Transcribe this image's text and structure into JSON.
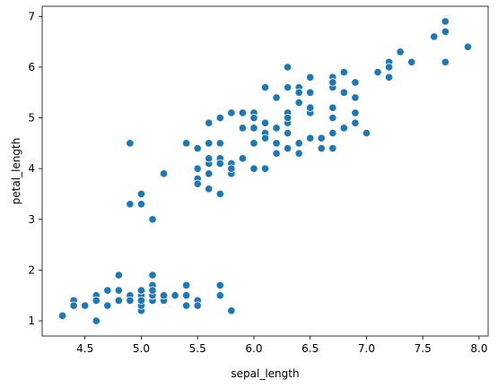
{
  "chart_data": {
    "type": "scatter",
    "xlabel": "sepal_length",
    "ylabel": "petal_length",
    "xlim": [
      4.12,
      8.08
    ],
    "ylim": [
      0.7,
      7.2
    ],
    "xticks": [
      4.5,
      5.0,
      5.5,
      6.0,
      6.5,
      7.0,
      7.5,
      8.0
    ],
    "xtick_labels": [
      "4.5",
      "5.0",
      "5.5",
      "6.0",
      "6.5",
      "7.0",
      "7.5",
      "8.0"
    ],
    "yticks": [
      1,
      2,
      3,
      4,
      5,
      6,
      7
    ],
    "ytick_labels": [
      "1",
      "2",
      "3",
      "4",
      "5",
      "6",
      "7"
    ],
    "grid": false,
    "marker_color": "#1f77b4",
    "points": [
      [
        5.1,
        1.4
      ],
      [
        4.9,
        1.4
      ],
      [
        4.7,
        1.3
      ],
      [
        4.6,
        1.5
      ],
      [
        5.0,
        1.4
      ],
      [
        5.4,
        1.7
      ],
      [
        4.6,
        1.4
      ],
      [
        5.0,
        1.5
      ],
      [
        4.4,
        1.4
      ],
      [
        4.9,
        1.5
      ],
      [
        5.4,
        1.5
      ],
      [
        4.8,
        1.6
      ],
      [
        4.8,
        1.4
      ],
      [
        4.3,
        1.1
      ],
      [
        5.8,
        1.2
      ],
      [
        5.7,
        1.5
      ],
      [
        5.4,
        1.3
      ],
      [
        5.1,
        1.4
      ],
      [
        5.7,
        1.7
      ],
      [
        5.1,
        1.5
      ],
      [
        5.4,
        1.7
      ],
      [
        5.1,
        1.5
      ],
      [
        4.6,
        1.0
      ],
      [
        5.1,
        1.7
      ],
      [
        4.8,
        1.9
      ],
      [
        5.0,
        1.6
      ],
      [
        5.0,
        1.6
      ],
      [
        5.2,
        1.5
      ],
      [
        5.2,
        1.4
      ],
      [
        4.7,
        1.6
      ],
      [
        4.8,
        1.6
      ],
      [
        5.4,
        1.5
      ],
      [
        5.2,
        1.5
      ],
      [
        5.5,
        1.4
      ],
      [
        4.9,
        1.5
      ],
      [
        5.0,
        1.2
      ],
      [
        5.5,
        1.3
      ],
      [
        4.9,
        1.4
      ],
      [
        4.4,
        1.3
      ],
      [
        5.1,
        1.5
      ],
      [
        5.0,
        1.3
      ],
      [
        4.5,
        1.3
      ],
      [
        4.4,
        1.3
      ],
      [
        5.0,
        1.6
      ],
      [
        5.1,
        1.9
      ],
      [
        4.8,
        1.4
      ],
      [
        5.1,
        1.6
      ],
      [
        4.6,
        1.4
      ],
      [
        5.3,
        1.5
      ],
      [
        5.0,
        1.4
      ],
      [
        7.0,
        4.7
      ],
      [
        6.4,
        4.5
      ],
      [
        6.9,
        4.9
      ],
      [
        5.5,
        4.0
      ],
      [
        6.5,
        4.6
      ],
      [
        5.7,
        4.5
      ],
      [
        6.3,
        4.7
      ],
      [
        4.9,
        3.3
      ],
      [
        6.6,
        4.6
      ],
      [
        5.2,
        3.9
      ],
      [
        5.0,
        3.5
      ],
      [
        5.9,
        4.2
      ],
      [
        6.0,
        4.0
      ],
      [
        6.1,
        4.7
      ],
      [
        5.6,
        3.6
      ],
      [
        6.7,
        4.4
      ],
      [
        5.6,
        4.5
      ],
      [
        5.8,
        4.1
      ],
      [
        6.2,
        4.5
      ],
      [
        5.6,
        3.9
      ],
      [
        5.9,
        4.8
      ],
      [
        6.1,
        4.0
      ],
      [
        6.3,
        4.9
      ],
      [
        6.1,
        4.7
      ],
      [
        6.4,
        4.3
      ],
      [
        6.6,
        4.4
      ],
      [
        6.8,
        4.8
      ],
      [
        6.7,
        5.0
      ],
      [
        6.0,
        4.5
      ],
      [
        5.7,
        3.5
      ],
      [
        5.5,
        3.8
      ],
      [
        5.5,
        3.7
      ],
      [
        5.8,
        3.9
      ],
      [
        6.0,
        5.1
      ],
      [
        5.4,
        4.5
      ],
      [
        6.0,
        4.5
      ],
      [
        6.7,
        4.7
      ],
      [
        6.3,
        4.4
      ],
      [
        5.6,
        4.1
      ],
      [
        5.5,
        4.0
      ],
      [
        5.5,
        4.4
      ],
      [
        6.1,
        4.6
      ],
      [
        5.8,
        4.0
      ],
      [
        5.0,
        3.3
      ],
      [
        5.6,
        4.2
      ],
      [
        5.7,
        4.2
      ],
      [
        5.7,
        4.2
      ],
      [
        6.2,
        4.3
      ],
      [
        5.1,
        3.0
      ],
      [
        5.7,
        4.1
      ],
      [
        6.3,
        6.0
      ],
      [
        5.8,
        5.1
      ],
      [
        7.1,
        5.9
      ],
      [
        6.3,
        5.6
      ],
      [
        6.5,
        5.8
      ],
      [
        7.6,
        6.6
      ],
      [
        4.9,
        4.5
      ],
      [
        7.3,
        6.3
      ],
      [
        6.7,
        5.8
      ],
      [
        7.2,
        6.1
      ],
      [
        6.5,
        5.1
      ],
      [
        6.4,
        5.3
      ],
      [
        6.8,
        5.5
      ],
      [
        5.7,
        5.0
      ],
      [
        5.8,
        5.1
      ],
      [
        6.4,
        5.3
      ],
      [
        6.5,
        5.5
      ],
      [
        7.7,
        6.7
      ],
      [
        7.7,
        6.9
      ],
      [
        6.0,
        5.0
      ],
      [
        6.9,
        5.7
      ],
      [
        5.6,
        4.9
      ],
      [
        7.7,
        6.7
      ],
      [
        6.3,
        4.9
      ],
      [
        6.7,
        5.7
      ],
      [
        7.2,
        6.0
      ],
      [
        6.2,
        4.8
      ],
      [
        6.1,
        4.9
      ],
      [
        6.4,
        5.6
      ],
      [
        7.2,
        5.8
      ],
      [
        7.4,
        6.1
      ],
      [
        7.9,
        6.4
      ],
      [
        6.4,
        5.6
      ],
      [
        6.3,
        5.1
      ],
      [
        6.1,
        5.6
      ],
      [
        7.7,
        6.1
      ],
      [
        6.3,
        5.6
      ],
      [
        6.4,
        5.5
      ],
      [
        6.0,
        4.8
      ],
      [
        6.9,
        5.4
      ],
      [
        6.7,
        5.6
      ],
      [
        6.9,
        5.1
      ],
      [
        5.8,
        5.1
      ],
      [
        6.8,
        5.9
      ],
      [
        6.7,
        5.7
      ],
      [
        6.7,
        5.2
      ],
      [
        6.3,
        5.0
      ],
      [
        6.5,
        5.2
      ],
      [
        6.2,
        5.4
      ],
      [
        5.9,
        5.1
      ]
    ]
  }
}
